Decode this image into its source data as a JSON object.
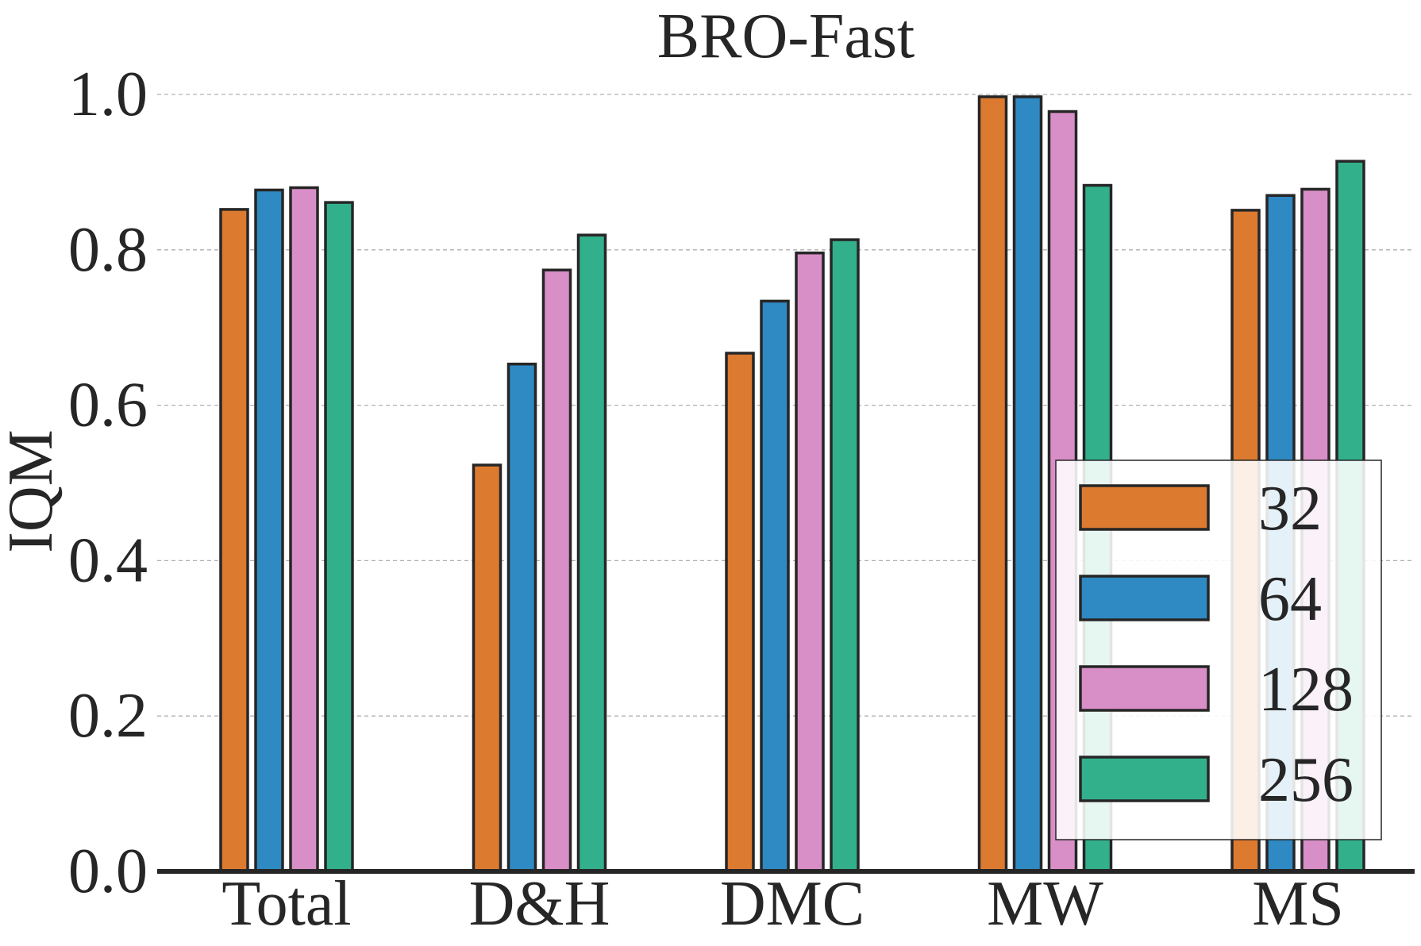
{
  "chart_data": {
    "type": "bar",
    "title": "BRO-Fast",
    "xlabel": "",
    "ylabel": "IQM",
    "ylim": [
      0.0,
      1.0
    ],
    "yticks": [
      "0.0",
      "0.2",
      "0.4",
      "0.6",
      "0.8",
      "1.0"
    ],
    "ytick_values": [
      0.0,
      0.2,
      0.4,
      0.6,
      0.8,
      1.0
    ],
    "grid": "horizontal dashed",
    "legend_position": "lower-right",
    "categories": [
      "Total",
      "D&H",
      "DMC",
      "MW",
      "MS"
    ],
    "series": [
      {
        "name": "32",
        "color": "#dc7a30",
        "values": [
          0.852,
          0.523,
          0.667,
          0.997,
          0.851
        ]
      },
      {
        "name": "64",
        "color": "#2f89c3",
        "values": [
          0.877,
          0.653,
          0.734,
          0.997,
          0.87
        ]
      },
      {
        "name": "128",
        "color": "#d88ec6",
        "values": [
          0.88,
          0.774,
          0.796,
          0.978,
          0.878
        ]
      },
      {
        "name": "256",
        "color": "#32b08b",
        "values": [
          0.861,
          0.819,
          0.813,
          0.883,
          0.914
        ]
      }
    ]
  }
}
